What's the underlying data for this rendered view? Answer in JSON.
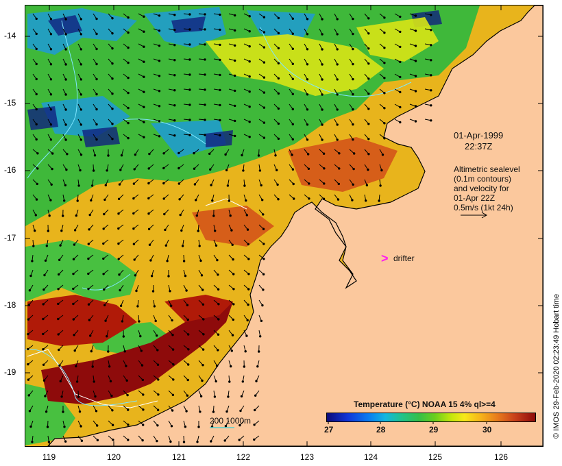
{
  "map": {
    "date": "01-Apr-1999",
    "time": "22:37Z",
    "legend_lines": [
      "Altimetric sealevel",
      "(0.1m contours)",
      "and velocity for",
      "01-Apr 22Z",
      "0.5m/s (1kt 24h)"
    ],
    "drifter_label": "drifter",
    "drifter_marker": ">",
    "scale_label": "200  1000m",
    "credit": "© IMOS 29-Feb-2020 02:23:49 Hobart time",
    "lat_ticks": [
      "-14",
      "-15",
      "-16",
      "-17",
      "-18",
      "-19"
    ],
    "lon_ticks": [
      "119",
      "120",
      "121",
      "122",
      "123",
      "124",
      "125",
      "126"
    ],
    "colorbar": {
      "title": "Temperature (°C) NOAA 15 4% ql>=4",
      "ticks": [
        "27",
        "28",
        "29",
        "30"
      ]
    },
    "colors": {
      "land": "#fbc89d",
      "warm": "#b01a08",
      "cool": "#1b3cc4",
      "drifter": "#ff1ef0",
      "contour": "#7fe6ff"
    }
  }
}
